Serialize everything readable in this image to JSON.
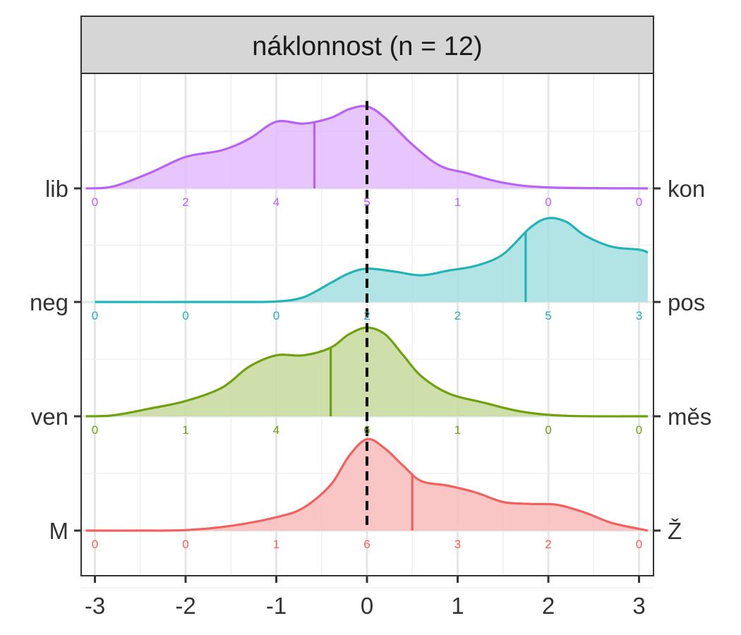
{
  "chart_data": {
    "type": "ridgeline",
    "title": "náklonnost (n = 12)",
    "xlim": [
      -3.1,
      3.1
    ],
    "x_ticks": [
      -3,
      -2,
      -1,
      0,
      1,
      2,
      3
    ],
    "x_tick_labels": [
      "-3",
      "-2",
      "-1",
      "0",
      "1",
      "2",
      "3"
    ],
    "reference_line_x": 0,
    "count_positions": [
      -3,
      -2,
      -1,
      0,
      1,
      2,
      3
    ],
    "ridges": [
      {
        "left_label": "M",
        "right_label": "Ž",
        "color": "#f0625d",
        "fill": "#f8bcbb",
        "mean": 0.5,
        "counts": [
          "0",
          "0",
          "1",
          "6",
          "3",
          "2",
          "0"
        ],
        "density": [
          [
            -3.1,
            0
          ],
          [
            -2.5,
            0
          ],
          [
            -2,
            0.005
          ],
          [
            -1.5,
            0.05
          ],
          [
            -1,
            0.14
          ],
          [
            -0.7,
            0.24
          ],
          [
            -0.4,
            0.48
          ],
          [
            -0.2,
            0.78
          ],
          [
            0,
            0.96
          ],
          [
            0.2,
            0.86
          ],
          [
            0.4,
            0.68
          ],
          [
            0.6,
            0.52
          ],
          [
            0.9,
            0.47
          ],
          [
            1.2,
            0.4
          ],
          [
            1.5,
            0.3
          ],
          [
            1.8,
            0.28
          ],
          [
            2.1,
            0.27
          ],
          [
            2.4,
            0.19
          ],
          [
            2.7,
            0.08
          ],
          [
            3.1,
            0
          ]
        ]
      },
      {
        "left_label": "ven",
        "right_label": "měs",
        "color": "#6fa10f",
        "fill": "#c5d99c",
        "mean": -0.4,
        "counts": [
          "0",
          "1",
          "4",
          "6",
          "1",
          "0",
          "0"
        ],
        "density": [
          [
            -3.1,
            0
          ],
          [
            -2.8,
            0.01
          ],
          [
            -2.4,
            0.08
          ],
          [
            -2,
            0.16
          ],
          [
            -1.6,
            0.3
          ],
          [
            -1.3,
            0.52
          ],
          [
            -1,
            0.64
          ],
          [
            -0.7,
            0.64
          ],
          [
            -0.4,
            0.72
          ],
          [
            -0.2,
            0.86
          ],
          [
            0,
            0.93
          ],
          [
            0.2,
            0.86
          ],
          [
            0.4,
            0.64
          ],
          [
            0.6,
            0.42
          ],
          [
            0.9,
            0.24
          ],
          [
            1.3,
            0.14
          ],
          [
            1.7,
            0.05
          ],
          [
            2.2,
            0.005
          ],
          [
            3.1,
            0
          ]
        ]
      },
      {
        "left_label": "neg",
        "right_label": "pos",
        "color": "#22b3b6",
        "fill": "#a5dfe0",
        "mean": 1.75,
        "counts": [
          "0",
          "0",
          "0",
          "2",
          "2",
          "5",
          "3"
        ],
        "density": [
          [
            -3,
            0
          ],
          [
            -1.5,
            0
          ],
          [
            -1,
            0.005
          ],
          [
            -0.7,
            0.05
          ],
          [
            -0.4,
            0.2
          ],
          [
            -0.2,
            0.3
          ],
          [
            0,
            0.35
          ],
          [
            0.3,
            0.32
          ],
          [
            0.6,
            0.28
          ],
          [
            0.9,
            0.33
          ],
          [
            1.2,
            0.38
          ],
          [
            1.5,
            0.5
          ],
          [
            1.8,
            0.78
          ],
          [
            2,
            0.88
          ],
          [
            2.2,
            0.84
          ],
          [
            2.4,
            0.7
          ],
          [
            2.7,
            0.58
          ],
          [
            3,
            0.55
          ],
          [
            3.1,
            0.52
          ]
        ]
      },
      {
        "left_label": "lib",
        "right_label": "kon",
        "color": "#b863f5",
        "fill": "#e2bcfc",
        "mean": -0.58,
        "counts": [
          "0",
          "2",
          "4",
          "5",
          "1",
          "0",
          "0"
        ],
        "density": [
          [
            -3.1,
            0
          ],
          [
            -2.8,
            0.02
          ],
          [
            -2.4,
            0.16
          ],
          [
            -2,
            0.33
          ],
          [
            -1.6,
            0.4
          ],
          [
            -1.3,
            0.52
          ],
          [
            -1,
            0.7
          ],
          [
            -0.7,
            0.68
          ],
          [
            -0.4,
            0.74
          ],
          [
            -0.2,
            0.83
          ],
          [
            0,
            0.86
          ],
          [
            0.2,
            0.74
          ],
          [
            0.5,
            0.46
          ],
          [
            0.8,
            0.24
          ],
          [
            1.1,
            0.16
          ],
          [
            1.5,
            0.06
          ],
          [
            2,
            0.01
          ],
          [
            3.1,
            0
          ]
        ]
      }
    ]
  }
}
